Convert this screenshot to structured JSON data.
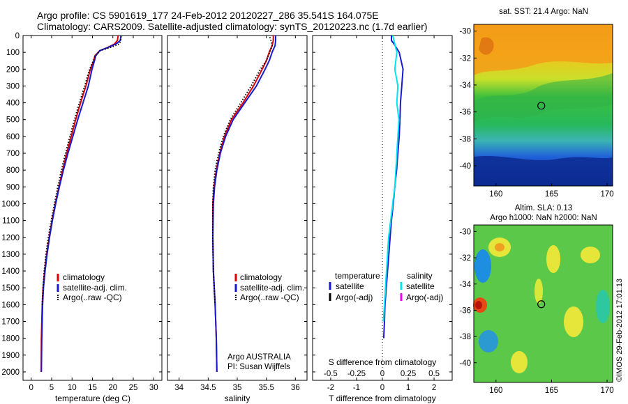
{
  "header": {
    "line1": "Argo profile: CS 5901619_177 24-Feb-2012 20120227_286 35.541S 164.075E",
    "line2": "Climatology: CARS2009. Satellite-adjusted climatology: synTS_20120223.nc (1.7d earlier)"
  },
  "colors": {
    "climatology": "#dd0000",
    "satellite": "#1a1acc",
    "argo": "#000000",
    "sal_sat": "#00e5ee",
    "sal_argo": "#ee00ee"
  },
  "chart_data": [
    {
      "type": "line",
      "name": "temperature-profile",
      "xlabel": "temperature (deg C)",
      "ylabel": "",
      "xlim": [
        -2,
        32
      ],
      "ylim": [
        2050,
        0
      ],
      "xticks": [
        "0",
        "5",
        "10",
        "15",
        "20",
        "25",
        "30"
      ],
      "yticks": [
        "0",
        "100",
        "200",
        "300",
        "400",
        "500",
        "600",
        "700",
        "800",
        "900",
        "1000",
        "1100",
        "1200",
        "1300",
        "1400",
        "1500",
        "1600",
        "1700",
        "1800",
        "1900",
        "2000"
      ],
      "legend": [
        "climatology",
        "satellite-adj. clim.",
        "Argo(..raw -QC)"
      ],
      "series": [
        {
          "name": "climatology",
          "x": [
            21.3,
            21.1,
            20.4,
            18.8,
            16.8,
            15.6,
            15.3,
            14.5,
            13.4,
            12.1,
            10.9,
            9.8,
            8.7,
            7.7,
            6.8,
            5.9,
            5.1,
            4.4,
            3.8,
            3.3,
            2.9,
            2.7,
            2.5,
            2.45
          ],
          "y": [
            0,
            30,
            50,
            70,
            90,
            120,
            150,
            200,
            300,
            400,
            500,
            600,
            700,
            800,
            900,
            1000,
            1100,
            1200,
            1300,
            1400,
            1500,
            1600,
            1800,
            2000
          ]
        },
        {
          "name": "satellite-adj. clim.",
          "x": [
            22.0,
            21.8,
            20.8,
            18.9,
            16.8,
            15.8,
            15.5,
            14.9,
            14.0,
            12.7,
            11.4,
            10.2,
            9.0,
            7.9,
            6.9,
            6.0,
            5.2,
            4.5,
            3.9,
            3.4,
            3.0,
            2.8,
            2.6,
            2.5
          ],
          "y": [
            0,
            30,
            50,
            70,
            90,
            120,
            150,
            200,
            300,
            400,
            500,
            600,
            700,
            800,
            900,
            1000,
            1100,
            1200,
            1300,
            1400,
            1500,
            1600,
            1800,
            2000
          ]
        },
        {
          "name": "Argo(..raw -QC)",
          "x": [
            22.0,
            21.9,
            21.6,
            19.5,
            16.9,
            15.7,
            15.2,
            14.3,
            13.1,
            11.8,
            10.6,
            9.5,
            8.4,
            7.4,
            6.5,
            5.7,
            4.9,
            4.2,
            3.6,
            3.2,
            2.9,
            2.7
          ],
          "y": [
            5,
            30,
            50,
            70,
            90,
            120,
            150,
            200,
            300,
            400,
            500,
            600,
            700,
            800,
            900,
            1000,
            1100,
            1200,
            1300,
            1400,
            1500,
            1600
          ]
        }
      ]
    },
    {
      "type": "line",
      "name": "salinity-profile",
      "xlabel": "salinity",
      "xlim": [
        33.8,
        36.2
      ],
      "ylim": [
        2050,
        0
      ],
      "xticks": [
        "34",
        "34.5",
        "35",
        "35.5",
        "36"
      ],
      "legend": [
        "climatology",
        "satellite-adj. clim.",
        "Argo(..raw -QC)"
      ],
      "annotation": [
        "Argo AUSTRALIA",
        "PI: Susan Wijffels"
      ],
      "series": [
        {
          "name": "climatology",
          "x": [
            35.62,
            35.62,
            35.6,
            35.55,
            35.5,
            35.43,
            35.28,
            35.1,
            34.9,
            34.78,
            34.7,
            34.64,
            34.6,
            34.58,
            34.58,
            34.59,
            34.62,
            34.64,
            34.65
          ],
          "y": [
            0,
            30,
            60,
            100,
            150,
            200,
            300,
            400,
            500,
            600,
            700,
            800,
            900,
            1000,
            1200,
            1400,
            1600,
            1800,
            2000
          ]
        },
        {
          "name": "satellite-adj. clim.",
          "x": [
            35.66,
            35.66,
            35.65,
            35.6,
            35.55,
            35.48,
            35.33,
            35.13,
            34.93,
            34.8,
            34.71,
            34.65,
            34.61,
            34.59,
            34.58,
            34.59,
            34.62,
            34.64,
            34.65
          ],
          "y": [
            0,
            30,
            60,
            100,
            150,
            200,
            300,
            400,
            500,
            600,
            700,
            800,
            900,
            1000,
            1200,
            1400,
            1600,
            1800,
            2000
          ]
        },
        {
          "name": "Argo(..raw -QC)",
          "x": [
            35.56,
            35.58,
            35.6,
            35.56,
            35.5,
            35.4,
            35.24,
            35.06,
            34.88,
            34.76,
            34.68,
            34.62,
            34.59,
            34.58,
            34.58,
            34.59,
            34.61,
            34.62
          ],
          "y": [
            10,
            30,
            60,
            100,
            150,
            200,
            300,
            400,
            500,
            600,
            700,
            800,
            900,
            1000,
            1200,
            1400,
            1550,
            1600
          ]
        }
      ]
    },
    {
      "type": "line",
      "name": "difference-profile",
      "xlabel": "T difference from climatology",
      "xlabel_top": "S difference from climatology",
      "xlim": [
        -2.7,
        2.7
      ],
      "ylim": [
        2050,
        0
      ],
      "xticks": [
        "-2",
        "-1",
        "0",
        "1",
        "2"
      ],
      "xticks_s": [
        "-0.5",
        "-0.25",
        "0",
        "0.25",
        "0.5"
      ],
      "legend": [
        "temperature",
        "satellite",
        "Argo(-adj)",
        "salinity",
        "satellite",
        "Argo(-adj)"
      ],
      "series": [
        {
          "name": "temperature satellite",
          "x": [
            0.35,
            0.35,
            0.45,
            0.65,
            0.8,
            0.75,
            0.7,
            0.68,
            0.65,
            0.6,
            0.55,
            0.48,
            0.42,
            0.35,
            0.3,
            0.25,
            0.2,
            0.15,
            0.1,
            0.08,
            0.05
          ],
          "y": [
            0,
            30,
            50,
            100,
            200,
            300,
            400,
            500,
            600,
            700,
            800,
            900,
            1000,
            1100,
            1200,
            1300,
            1400,
            1500,
            1600,
            1700,
            1800
          ]
        },
        {
          "name": "salinity satellite",
          "x": [
            0.1,
            0.12,
            0.14,
            0.12,
            0.15,
            0.14,
            0.16,
            0.15,
            0.14,
            0.13,
            0.12,
            0.1,
            0.08,
            0.06,
            0.05,
            0.04,
            0.03,
            0.02,
            0.01
          ],
          "y": [
            0,
            50,
            100,
            200,
            300,
            400,
            500,
            600,
            700,
            800,
            900,
            1000,
            1100,
            1200,
            1300,
            1400,
            1500,
            1600,
            1700
          ]
        }
      ]
    },
    {
      "type": "heatmap",
      "name": "sst-map",
      "title": "sat. SST: 21.4  Argo: NaN",
      "xlim": [
        158,
        170.5
      ],
      "ylim": [
        -41.5,
        -29.5
      ],
      "xticks": [
        "160",
        "165",
        "170"
      ],
      "yticks": [
        "-30",
        "-32",
        "-34",
        "-36",
        "-38",
        "-40"
      ],
      "marker": {
        "lon": 164.075,
        "lat": -35.541
      }
    },
    {
      "type": "heatmap",
      "name": "sla-map",
      "title_line1": "Altim. SLA: 0.13",
      "title_line2": "Argo h1000: NaN h2000: NaN",
      "xlim": [
        158,
        170.5
      ],
      "ylim": [
        -41.5,
        -29.5
      ],
      "xticks": [
        "160",
        "165",
        "170"
      ],
      "yticks": [
        "-30",
        "-32",
        "-34",
        "-36",
        "-38",
        "-40"
      ],
      "marker": {
        "lon": 164.075,
        "lat": -35.541
      }
    }
  ],
  "footer": {
    "credit": "©IMOS 29-Feb-2012 17:01:13"
  }
}
